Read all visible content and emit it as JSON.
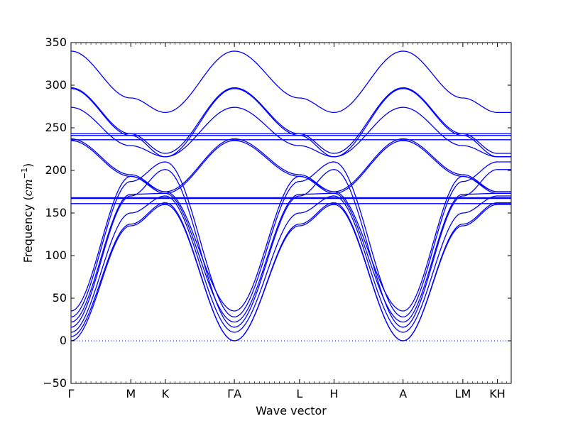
{
  "chart_data": {
    "type": "line",
    "title": "",
    "xlabel": "Wave vector",
    "ylabel": {
      "main": "Frequency (",
      "unit": "cm",
      "exponent": "−1",
      "close": ")"
    },
    "ylim": [
      -50,
      350
    ],
    "yticks": [
      -50,
      0,
      50,
      100,
      150,
      200,
      250,
      300,
      350
    ],
    "ytick_labels": [
      "−50",
      "0",
      "50",
      "100",
      "150",
      "200",
      "250",
      "300",
      "350"
    ],
    "path_points": [
      {
        "label": "Γ",
        "pos": 0
      },
      {
        "label": "M",
        "pos": 0.866
      },
      {
        "label": "K",
        "pos": 1.366
      },
      {
        "label": "ΓA",
        "pos": 2.366
      },
      {
        "label": "L",
        "pos": 3.309
      },
      {
        "label": "H",
        "pos": 3.809
      },
      {
        "label": "A",
        "pos": 4.809
      },
      {
        "label": "LM",
        "pos": 5.675
      },
      {
        "label": "KH",
        "pos": 6.175
      }
    ],
    "x_range": [
      0,
      6.375
    ],
    "zero_line": true,
    "grid": false,
    "line_color": "#0000ff",
    "zero_line_color": "#0000ff",
    "series": [
      {
        "name": "",
        "values": [
          0,
          135,
          160,
          0,
          135,
          160,
          0,
          135,
          160,
          160
        ]
      },
      {
        "name": "",
        "values": [
          5,
          137,
          162,
          0,
          137,
          162,
          0,
          137,
          162,
          162
        ]
      },
      {
        "name": "",
        "values": [
          10,
          150,
          170,
          10,
          150,
          170,
          10,
          150,
          170,
          170
        ]
      },
      {
        "name": "",
        "values": [
          16,
          170,
          201,
          16,
          170,
          201,
          16,
          170,
          201,
          201
        ]
      },
      {
        "name": "",
        "values": [
          22,
          172,
          173,
          22,
          172,
          173,
          22,
          172,
          173,
          173
        ]
      },
      {
        "name": "",
        "values": [
          28,
          187,
          210,
          28,
          187,
          210,
          28,
          187,
          210,
          210
        ]
      },
      {
        "name": "",
        "values": [
          35,
          193,
          175,
          35,
          193,
          175,
          35,
          193,
          175,
          175
        ]
      },
      {
        "name": "",
        "values": [
          161,
          161,
          161,
          161,
          161,
          161,
          161,
          161,
          161,
          161
        ]
      },
      {
        "name": "",
        "values": [
          167,
          167,
          167,
          167,
          167,
          167,
          167,
          167,
          167,
          167
        ]
      },
      {
        "name": "",
        "values": [
          168,
          168,
          168,
          168,
          168,
          168,
          168,
          168,
          168,
          168
        ]
      },
      {
        "name": "",
        "values": [
          235,
          193,
          173,
          235,
          193,
          173,
          235,
          193,
          173,
          173
        ]
      },
      {
        "name": "",
        "values": [
          237,
          195,
          175,
          237,
          195,
          175,
          237,
          195,
          175,
          175
        ]
      },
      {
        "name": "",
        "values": [
          236,
          236,
          236,
          236,
          236,
          236,
          236,
          236,
          236,
          236
        ]
      },
      {
        "name": "",
        "values": [
          241,
          241,
          241,
          241,
          241,
          241,
          241,
          241,
          241,
          241
        ]
      },
      {
        "name": "",
        "values": [
          243,
          243,
          243,
          243,
          243,
          243,
          243,
          243,
          243,
          243
        ]
      },
      {
        "name": "",
        "values": [
          274,
          229,
          216,
          274,
          229,
          216,
          274,
          229,
          216,
          216
        ]
      },
      {
        "name": "",
        "values": [
          296,
          241,
          216,
          296,
          241,
          216,
          296,
          241,
          216,
          216
        ]
      },
      {
        "name": "",
        "values": [
          297,
          243,
          220,
          297,
          243,
          220,
          297,
          243,
          220,
          220
        ]
      },
      {
        "name": "",
        "values": [
          340,
          285,
          268,
          340,
          285,
          268,
          340,
          285,
          268,
          268
        ]
      }
    ]
  }
}
